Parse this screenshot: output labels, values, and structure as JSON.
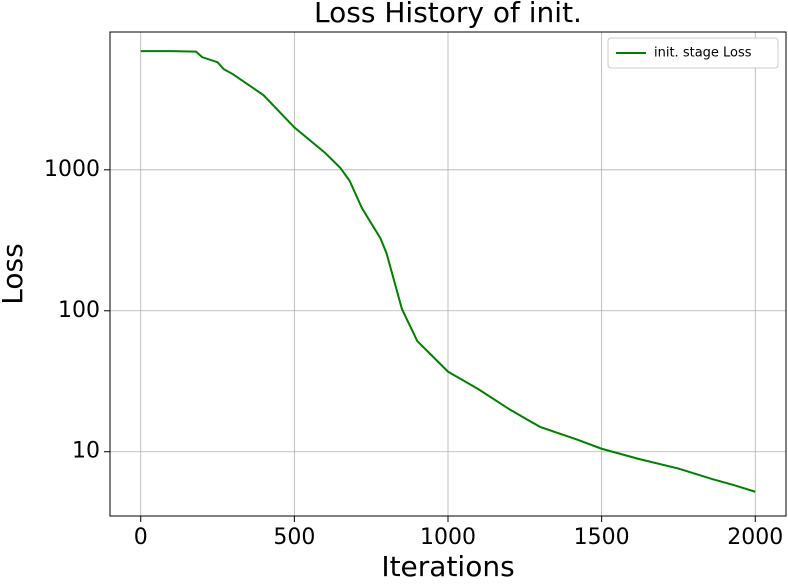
{
  "chart_data": {
    "type": "line",
    "title": "Loss History of init.",
    "x_label": "Iterations",
    "y_label": "Loss",
    "log_y": true,
    "grid": true,
    "legend_position": "upper right",
    "xlim": [
      -100,
      2100
    ],
    "ylim": [
      3.5,
      9500
    ],
    "xticks": [
      0,
      500,
      1000,
      1500,
      2000
    ],
    "yticks": [
      10,
      100,
      1000
    ],
    "x": [
      0,
      100,
      180,
      200,
      250,
      270,
      300,
      400,
      500,
      600,
      650,
      680,
      720,
      780,
      800,
      850,
      900,
      1000,
      1100,
      1200,
      1260,
      1300,
      1420,
      1500,
      1620,
      1750,
      1860,
      1930,
      2000
    ],
    "series": [
      {
        "name": "init. stage Loss",
        "color": "#008000",
        "values": [
          6950,
          6950,
          6900,
          6300,
          5800,
          5180,
          4770,
          3380,
          2000,
          1320,
          1030,
          835,
          535,
          327,
          256,
          103,
          61,
          37,
          27.7,
          20,
          16.8,
          15,
          12.2,
          10.5,
          8.9,
          7.6,
          6.4,
          5.8,
          5.2
        ]
      }
    ]
  }
}
